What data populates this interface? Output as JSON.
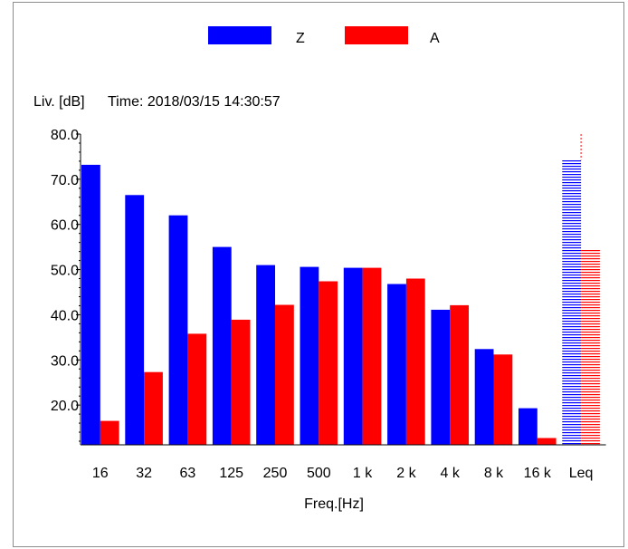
{
  "chart_data": {
    "type": "bar",
    "ylabel": "Liv. [dB]",
    "time_label": "Time: 2018/03/15 14:30:57",
    "xlabel": "Freq.[Hz]",
    "categories": [
      "16",
      "32",
      "63",
      "125",
      "250",
      "500",
      "1 k",
      "2 k",
      "4 k",
      "8 k",
      "16 k",
      "Leq"
    ],
    "series": [
      {
        "name": "Z",
        "color": "#0000ff",
        "values": [
          73.2,
          66.5,
          62.0,
          55.0,
          51.0,
          50.6,
          50.4,
          46.8,
          41.1,
          32.4,
          19.3,
          74.3
        ]
      },
      {
        "name": "A",
        "color": "#ff0000",
        "values": [
          16.5,
          27.3,
          35.8,
          38.9,
          42.2,
          47.4,
          50.4,
          48.0,
          42.1,
          31.2,
          12.7,
          54.6
        ]
      }
    ],
    "hatched_category": "Leq",
    "ylim": [
      11.2,
      80.0
    ],
    "yticks": [
      20.0,
      30.0,
      40.0,
      50.0,
      60.0,
      70.0,
      80.0
    ],
    "ytick_labels": [
      "20.0",
      "30.0",
      "40.0",
      "50.0",
      "60.0",
      "70.0",
      "80.0"
    ],
    "legend_position": "top-center",
    "grid": false
  }
}
